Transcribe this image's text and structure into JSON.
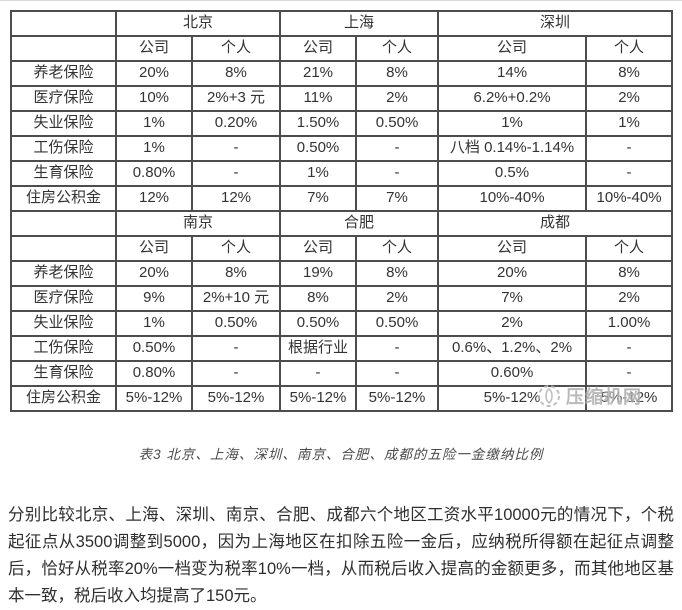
{
  "colors": {
    "table_border": "#4d4d4d",
    "table_text": "#333333",
    "watermark": "#adadad",
    "paragraph_text": "#2e2e2e"
  },
  "table": {
    "caption": "表3 北京、上海、深圳、南京、合肥、成都的五险一金缴纳比例",
    "subheaders": [
      "公司",
      "个人"
    ],
    "sections": [
      {
        "cities": [
          "北京",
          "上海",
          "深圳"
        ],
        "rows": [
          {
            "label": "养老保险",
            "values": [
              "20%",
              "8%",
              "21%",
              "8%",
              "14%",
              "8%"
            ]
          },
          {
            "label": "医疗保险",
            "values": [
              "10%",
              "2%+3 元",
              "11%",
              "2%",
              "6.2%+0.2%",
              "2%"
            ]
          },
          {
            "label": "失业保险",
            "values": [
              "1%",
              "0.20%",
              "1.50%",
              "0.50%",
              "1%",
              "1%"
            ]
          },
          {
            "label": "工伤保险",
            "values": [
              "1%",
              "-",
              "0.50%",
              "-",
              "八档 0.14%-1.14%",
              "-"
            ]
          },
          {
            "label": "生育保险",
            "values": [
              "0.80%",
              "-",
              "1%",
              "-",
              "0.5%",
              "-"
            ]
          },
          {
            "label": "住房公积金",
            "values": [
              "12%",
              "12%",
              "7%",
              "7%",
              "10%-40%",
              "10%-40%"
            ]
          }
        ]
      },
      {
        "cities": [
          "南京",
          "合肥",
          "成都"
        ],
        "rows": [
          {
            "label": "养老保险",
            "values": [
              "20%",
              "8%",
              "19%",
              "8%",
              "20%",
              "8%"
            ]
          },
          {
            "label": "医疗保险",
            "values": [
              "9%",
              "2%+10 元",
              "8%",
              "2%",
              "7%",
              "2%"
            ]
          },
          {
            "label": "失业保险",
            "values": [
              "1%",
              "0.50%",
              "0.50%",
              "0.50%",
              "2%",
              "1.00%"
            ]
          },
          {
            "label": "工伤保险",
            "values": [
              "0.50%",
              "-",
              "根据行业",
              "-",
              "0.6%、1.2%、2%",
              "-"
            ]
          },
          {
            "label": "生育保险",
            "values": [
              "0.80%",
              "-",
              "-",
              "-",
              "0.60%",
              "-"
            ]
          },
          {
            "label": "住房公积金",
            "values": [
              "5%-12%",
              "5%-12%",
              "5%-12%",
              "5%-12%",
              "5%-12%",
              "5%-12%"
            ]
          }
        ]
      }
    ]
  },
  "watermark": {
    "text": "压缩机网"
  },
  "paragraph": "分别比较北京、上海、深圳、南京、合肥、成都六个地区工资水平10000元的情况下，个税起征点从3500调整到5000，因为上海地区在扣除五险一金后，应纳税所得额在起征点调整后，恰好从税率20%一档变为税率10%一档，从而税后收入提高的金额更多，而其他地区基本一致，税后收入均提高了150元。"
}
